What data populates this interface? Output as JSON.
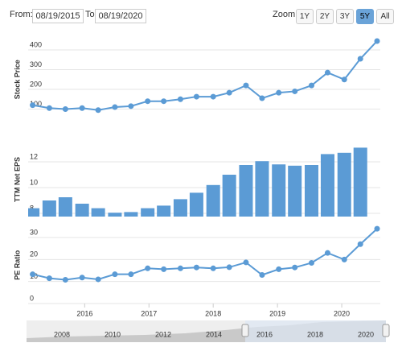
{
  "controls": {
    "from_label": "From:",
    "from": "08/19/2015",
    "to_label": "To:",
    "to": "08/19/2020",
    "zoom_label": "Zoom:",
    "zoom": [
      "1Y",
      "2Y",
      "3Y",
      "5Y",
      "All"
    ],
    "zoom_selected": "5Y"
  },
  "chart_data": [
    {
      "type": "line",
      "y_label": "Stock Price",
      "color": "#5b9bd5",
      "x": [
        2015.19,
        2015.45,
        2015.7,
        2015.96,
        2016.21,
        2016.47,
        2016.72,
        2016.98,
        2017.23,
        2017.49,
        2017.74,
        2018.0,
        2018.25,
        2018.51,
        2018.76,
        2019.02,
        2019.27,
        2019.53,
        2019.78,
        2020.04,
        2020.29,
        2020.55
      ],
      "values": [
        120,
        105,
        100,
        105,
        95,
        110,
        115,
        140,
        140,
        150,
        163,
        163,
        183,
        220,
        155,
        183,
        190,
        220,
        285,
        250,
        355,
        445
      ],
      "xlim": [
        2015.12,
        2020.6
      ],
      "ylim": [
        0,
        500
      ],
      "yticks": [
        100,
        200,
        300,
        400
      ]
    },
    {
      "type": "bar",
      "y_label": "TTM Net EPS",
      "color": "#5b9bd5",
      "x": [
        2015.19,
        2015.45,
        2015.7,
        2015.96,
        2016.21,
        2016.47,
        2016.72,
        2016.98,
        2017.23,
        2017.49,
        2017.74,
        2018.0,
        2018.25,
        2018.51,
        2018.76,
        2019.02,
        2019.27,
        2019.53,
        2019.78,
        2020.04,
        2020.29
      ],
      "values": [
        8.4,
        9,
        9.25,
        8.75,
        8.4,
        8.05,
        8.1,
        8.4,
        8.6,
        9.1,
        9.6,
        10.2,
        11,
        11.75,
        12.05,
        11.8,
        11.7,
        11.75,
        12.6,
        12.7,
        13.1
      ],
      "xlim": [
        2015.12,
        2020.6
      ],
      "ylim": [
        7.75,
        13.5
      ],
      "yticks": [
        8,
        10,
        12
      ]
    },
    {
      "type": "line",
      "y_label": "PE Ratio",
      "color": "#5b9bd5",
      "x": [
        2015.19,
        2015.45,
        2015.7,
        2015.96,
        2016.21,
        2016.47,
        2016.72,
        2016.98,
        2017.23,
        2017.49,
        2017.74,
        2018.0,
        2018.25,
        2018.51,
        2018.76,
        2019.02,
        2019.27,
        2019.53,
        2019.78,
        2020.04,
        2020.29,
        2020.55
      ],
      "values": [
        13.3,
        11.5,
        10.8,
        11.8,
        11,
        13.3,
        13.3,
        16,
        15.6,
        16,
        16.4,
        16,
        16.5,
        18.7,
        13,
        15.6,
        16.4,
        18.5,
        23,
        20,
        27,
        34
      ],
      "xlim": [
        2015.12,
        2020.6
      ],
      "ylim": [
        0,
        35
      ],
      "yticks": [
        0,
        10,
        20,
        30
      ],
      "xticks": [
        2016,
        2017,
        2018,
        2019,
        2020
      ]
    }
  ],
  "navigator": {
    "labels": [
      "2008",
      "2010",
      "2012",
      "2014",
      "2016",
      "2018",
      "2020"
    ]
  }
}
